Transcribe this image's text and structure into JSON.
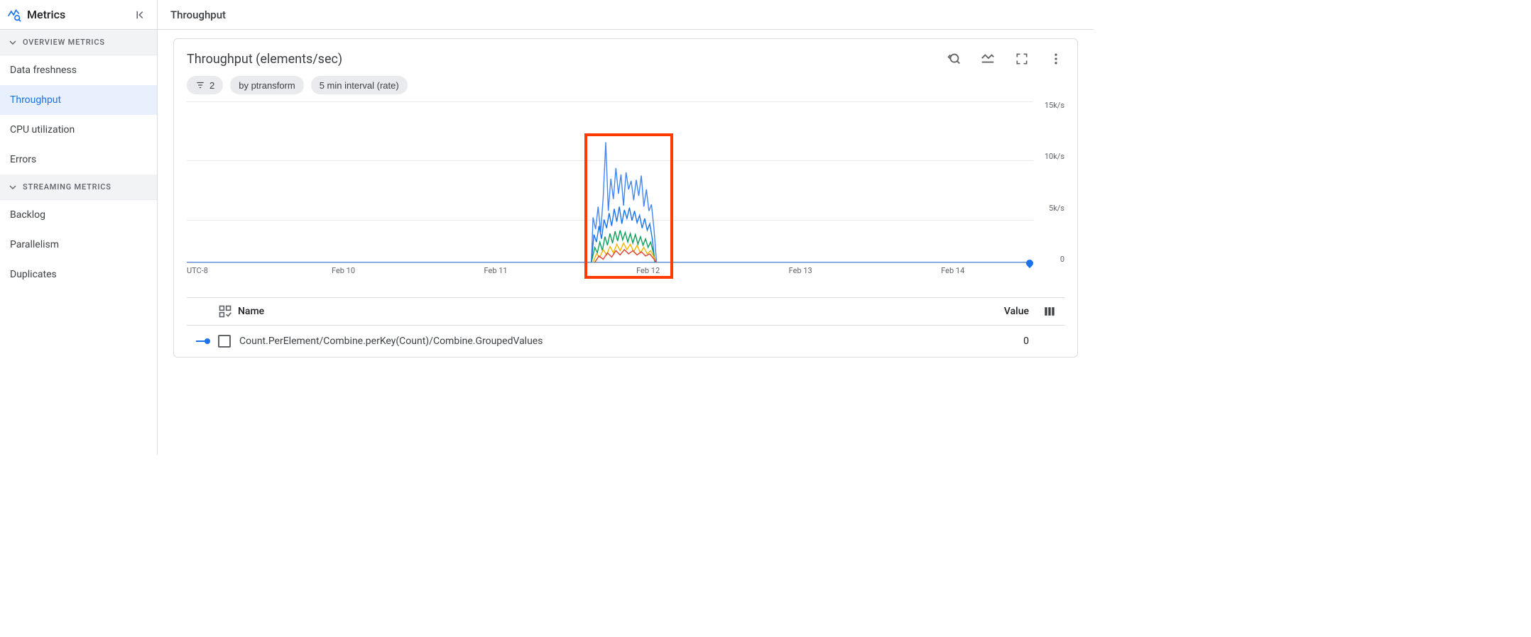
{
  "sidebar": {
    "title": "Metrics",
    "sections": [
      {
        "label": "OVERVIEW METRICS",
        "items": [
          {
            "label": "Data freshness",
            "active": false
          },
          {
            "label": "Throughput",
            "active": true
          },
          {
            "label": "CPU utilization",
            "active": false
          },
          {
            "label": "Errors",
            "active": false
          }
        ]
      },
      {
        "label": "STREAMING METRICS",
        "items": [
          {
            "label": "Backlog",
            "active": false
          },
          {
            "label": "Parallelism",
            "active": false
          },
          {
            "label": "Duplicates",
            "active": false
          }
        ]
      }
    ]
  },
  "main": {
    "header": "Throughput"
  },
  "chart": {
    "title": "Throughput (elements/sec)",
    "type": "line",
    "chips": {
      "filter_count": "2",
      "group_by": "by ptransform",
      "interval": "5 min interval (rate)"
    },
    "timezone_label": "UTC-8",
    "x_ticks": [
      {
        "label": "Feb 10",
        "pos_pct": 18.5
      },
      {
        "label": "Feb 11",
        "pos_pct": 36.5
      },
      {
        "label": "Feb 12",
        "pos_pct": 54.5
      },
      {
        "label": "Feb 13",
        "pos_pct": 72.5
      },
      {
        "label": "Feb 14",
        "pos_pct": 90.5
      }
    ],
    "y_ticks": [
      "15k/s",
      "10k/s",
      "5k/s",
      "0"
    ],
    "ylim": [
      0,
      15000
    ],
    "grid_color": "#e8eaed",
    "background_color": "#ffffff",
    "highlight_box": {
      "left_pct": 47.0,
      "top_pct": 18.0,
      "width_pct": 10.5,
      "height_pct": 82.0,
      "border_color": "#ff3b00"
    },
    "series_colors": [
      "#1a73e8",
      "#4285f4",
      "#0f9d58",
      "#f4b400",
      "#db4437",
      "#00796b"
    ],
    "data_region": {
      "comment": "Spiky elements/sec burst roughly Feb 11 18:00 through Feb 12 02:00, zero elsewhere. x_pct is percent of plot width, values in elements/sec.",
      "baseline_value": 0,
      "series": [
        {
          "color": "#4285f4",
          "points": [
            [
              47.8,
              0
            ],
            [
              48.0,
              4200
            ],
            [
              48.3,
              3100
            ],
            [
              48.6,
              5200
            ],
            [
              48.9,
              2800
            ],
            [
              49.2,
              6100
            ],
            [
              49.5,
              11200
            ],
            [
              49.8,
              4800
            ],
            [
              50.1,
              7800
            ],
            [
              50.4,
              5900
            ],
            [
              50.7,
              8800
            ],
            [
              51.0,
              6400
            ],
            [
              51.3,
              8200
            ],
            [
              51.6,
              5300
            ],
            [
              51.9,
              8400
            ],
            [
              52.2,
              6800
            ],
            [
              52.5,
              7600
            ],
            [
              52.8,
              5800
            ],
            [
              53.1,
              7700
            ],
            [
              53.4,
              6200
            ],
            [
              53.7,
              8100
            ],
            [
              54.0,
              5200
            ],
            [
              54.3,
              6800
            ],
            [
              54.6,
              4800
            ],
            [
              54.9,
              5400
            ],
            [
              55.2,
              3100
            ],
            [
              55.5,
              0
            ]
          ]
        },
        {
          "color": "#1a73e8",
          "points": [
            [
              47.8,
              0
            ],
            [
              48.1,
              2600
            ],
            [
              48.4,
              1900
            ],
            [
              48.7,
              3400
            ],
            [
              49.0,
              2200
            ],
            [
              49.3,
              4000
            ],
            [
              49.6,
              3200
            ],
            [
              49.9,
              4600
            ],
            [
              50.2,
              3400
            ],
            [
              50.5,
              5000
            ],
            [
              50.8,
              3800
            ],
            [
              51.1,
              5200
            ],
            [
              51.4,
              3600
            ],
            [
              51.7,
              4900
            ],
            [
              52.0,
              4100
            ],
            [
              52.3,
              5100
            ],
            [
              52.6,
              3900
            ],
            [
              52.9,
              4800
            ],
            [
              53.2,
              3700
            ],
            [
              53.5,
              4400
            ],
            [
              53.8,
              3200
            ],
            [
              54.1,
              4100
            ],
            [
              54.4,
              3000
            ],
            [
              54.7,
              3600
            ],
            [
              55.0,
              2200
            ],
            [
              55.3,
              0
            ]
          ]
        },
        {
          "color": "#0f9d58",
          "points": [
            [
              47.8,
              0
            ],
            [
              48.2,
              1400
            ],
            [
              48.5,
              900
            ],
            [
              48.8,
              1900
            ],
            [
              49.1,
              1100
            ],
            [
              49.4,
              2400
            ],
            [
              49.7,
              1600
            ],
            [
              50.0,
              2700
            ],
            [
              50.3,
              1800
            ],
            [
              50.6,
              2900
            ],
            [
              50.9,
              2000
            ],
            [
              51.2,
              3000
            ],
            [
              51.5,
              2100
            ],
            [
              51.8,
              2800
            ],
            [
              52.1,
              1900
            ],
            [
              52.4,
              2700
            ],
            [
              52.7,
              1800
            ],
            [
              53.0,
              2600
            ],
            [
              53.3,
              1700
            ],
            [
              53.6,
              2400
            ],
            [
              53.9,
              1600
            ],
            [
              54.2,
              2200
            ],
            [
              54.5,
              1400
            ],
            [
              54.8,
              1900
            ],
            [
              55.1,
              1000
            ],
            [
              55.4,
              0
            ]
          ]
        },
        {
          "color": "#f4b400",
          "points": [
            [
              48.0,
              0
            ],
            [
              48.4,
              800
            ],
            [
              48.8,
              500
            ],
            [
              49.2,
              1200
            ],
            [
              49.6,
              700
            ],
            [
              50.0,
              1500
            ],
            [
              50.4,
              900
            ],
            [
              50.8,
              1700
            ],
            [
              51.2,
              1100
            ],
            [
              51.6,
              1800
            ],
            [
              52.0,
              1200
            ],
            [
              52.4,
              1700
            ],
            [
              52.8,
              1000
            ],
            [
              53.2,
              1600
            ],
            [
              53.6,
              900
            ],
            [
              54.0,
              1400
            ],
            [
              54.4,
              800
            ],
            [
              54.8,
              1100
            ],
            [
              55.2,
              500
            ],
            [
              55.5,
              0
            ]
          ]
        },
        {
          "color": "#db4437",
          "points": [
            [
              48.2,
              0
            ],
            [
              48.7,
              600
            ],
            [
              49.2,
              300
            ],
            [
              49.7,
              900
            ],
            [
              50.2,
              500
            ],
            [
              50.7,
              1100
            ],
            [
              51.2,
              700
            ],
            [
              51.7,
              1200
            ],
            [
              52.2,
              800
            ],
            [
              52.7,
              1100
            ],
            [
              53.2,
              700
            ],
            [
              53.7,
              1000
            ],
            [
              54.2,
              600
            ],
            [
              54.7,
              800
            ],
            [
              55.2,
              300
            ],
            [
              55.5,
              0
            ]
          ]
        }
      ]
    }
  },
  "legend": {
    "name_header": "Name",
    "value_header": "Value",
    "rows": [
      {
        "name": "Count.PerElement/Combine.perKey(Count)/Combine.GroupedValues",
        "value": "0",
        "color": "#1a73e8"
      }
    ]
  }
}
